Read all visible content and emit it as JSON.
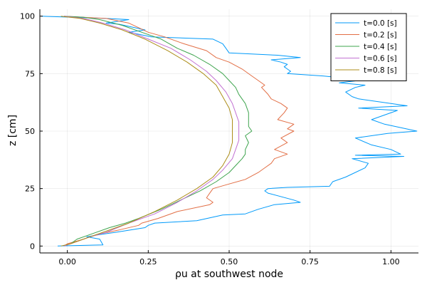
{
  "chart_data": {
    "type": "line",
    "xlabel": "ρu at southwest node",
    "ylabel": "z [cm]",
    "xlim": [
      -0.085,
      1.085
    ],
    "ylim": [
      -3,
      103
    ],
    "x_ticks": [
      0.0,
      0.25,
      0.5,
      0.75,
      1.0
    ],
    "x_tick_labels": [
      "0.00",
      "0.25",
      "0.50",
      "0.75",
      "1.00"
    ],
    "y_ticks": [
      0,
      25,
      50,
      75,
      100
    ],
    "y_tick_labels": [
      "0",
      "25",
      "50",
      "75",
      "100"
    ],
    "grid": true,
    "legend": "top-right",
    "series": [
      {
        "name": "t=0.0 [s]",
        "color": "#009AFA",
        "points": [
          [
            -0.08,
            100
          ],
          [
            0.12,
            99
          ],
          [
            0.19,
            98.5
          ],
          [
            0.12,
            97
          ],
          [
            0.16,
            96.5
          ],
          [
            0.24,
            94
          ],
          [
            0.19,
            93
          ],
          [
            0.26,
            91
          ],
          [
            0.45,
            90
          ],
          [
            0.48,
            88
          ],
          [
            0.49,
            86
          ],
          [
            0.5,
            84
          ],
          [
            0.65,
            83
          ],
          [
            0.72,
            82
          ],
          [
            0.63,
            81
          ],
          [
            0.66,
            80
          ],
          [
            0.68,
            79
          ],
          [
            0.67,
            78
          ],
          [
            0.68,
            77
          ],
          [
            0.69,
            76
          ],
          [
            0.68,
            75
          ],
          [
            0.79,
            74
          ],
          [
            0.86,
            73
          ],
          [
            0.9,
            72
          ],
          [
            0.84,
            71
          ],
          [
            0.92,
            70
          ],
          [
            0.89,
            69
          ],
          [
            0.86,
            67
          ],
          [
            0.88,
            65
          ],
          [
            0.9,
            64
          ],
          [
            1.05,
            61
          ],
          [
            0.9,
            60
          ],
          [
            1.02,
            59
          ],
          [
            0.94,
            55
          ],
          [
            0.98,
            53
          ],
          [
            1.08,
            50
          ],
          [
            0.99,
            49
          ],
          [
            0.89,
            47
          ],
          [
            0.94,
            44
          ],
          [
            1.0,
            42
          ],
          [
            1.03,
            40
          ],
          [
            0.89,
            39.5
          ],
          [
            1.04,
            39
          ],
          [
            0.88,
            38
          ],
          [
            0.93,
            36
          ],
          [
            0.92,
            34
          ],
          [
            0.86,
            30
          ],
          [
            0.82,
            28
          ],
          [
            0.81,
            26
          ],
          [
            0.68,
            25.5
          ],
          [
            0.62,
            25
          ],
          [
            0.61,
            24
          ],
          [
            0.62,
            23
          ],
          [
            0.7,
            20
          ],
          [
            0.72,
            19
          ],
          [
            0.64,
            18
          ],
          [
            0.59,
            16
          ],
          [
            0.55,
            14
          ],
          [
            0.48,
            13.5
          ],
          [
            0.4,
            11
          ],
          [
            0.27,
            10
          ],
          [
            0.25,
            9
          ],
          [
            0.24,
            8
          ],
          [
            0.15,
            6
          ],
          [
            0.1,
            5
          ],
          [
            0.06,
            4
          ],
          [
            0.1,
            3
          ],
          [
            0.11,
            0.5
          ],
          [
            -0.03,
            0
          ]
        ]
      },
      {
        "name": "t=0.2 [s]",
        "color": "#E26F46",
        "points": [
          [
            -0.01,
            100
          ],
          [
            0.05,
            99.5
          ],
          [
            0.12,
            99
          ],
          [
            0.19,
            97
          ],
          [
            0.22,
            95
          ],
          [
            0.25,
            93
          ],
          [
            0.3,
            91
          ],
          [
            0.36,
            88
          ],
          [
            0.43,
            85
          ],
          [
            0.46,
            82
          ],
          [
            0.5,
            80
          ],
          [
            0.54,
            77
          ],
          [
            0.57,
            74
          ],
          [
            0.59,
            72
          ],
          [
            0.61,
            70
          ],
          [
            0.6,
            69
          ],
          [
            0.62,
            66
          ],
          [
            0.63,
            64
          ],
          [
            0.66,
            62
          ],
          [
            0.68,
            60
          ],
          [
            0.67,
            58
          ],
          [
            0.65,
            55
          ],
          [
            0.7,
            53
          ],
          [
            0.68,
            51
          ],
          [
            0.7,
            50
          ],
          [
            0.66,
            47
          ],
          [
            0.68,
            45
          ],
          [
            0.64,
            42
          ],
          [
            0.68,
            40
          ],
          [
            0.64,
            38
          ],
          [
            0.63,
            36
          ],
          [
            0.61,
            34
          ],
          [
            0.59,
            32
          ],
          [
            0.55,
            29
          ],
          [
            0.5,
            27
          ],
          [
            0.45,
            25
          ],
          [
            0.44,
            23
          ],
          [
            0.43,
            21
          ],
          [
            0.45,
            19
          ],
          [
            0.44,
            18
          ],
          [
            0.34,
            15
          ],
          [
            0.28,
            12
          ],
          [
            0.23,
            10
          ],
          [
            0.22,
            9
          ],
          [
            0.16,
            7
          ],
          [
            0.09,
            5
          ],
          [
            0.05,
            3
          ],
          [
            0.0,
            1
          ],
          [
            -0.01,
            0
          ]
        ]
      },
      {
        "name": "t=0.4 [s]",
        "color": "#3EA44E",
        "points": [
          [
            -0.01,
            100
          ],
          [
            0.05,
            99.5
          ],
          [
            0.1,
            98.5
          ],
          [
            0.17,
            96
          ],
          [
            0.23,
            93
          ],
          [
            0.29,
            90
          ],
          [
            0.34,
            86
          ],
          [
            0.39,
            83
          ],
          [
            0.44,
            79
          ],
          [
            0.48,
            75
          ],
          [
            0.5,
            72
          ],
          [
            0.52,
            69
          ],
          [
            0.53,
            66
          ],
          [
            0.55,
            62
          ],
          [
            0.56,
            58
          ],
          [
            0.56,
            55
          ],
          [
            0.56,
            52
          ],
          [
            0.57,
            50
          ],
          [
            0.55,
            48
          ],
          [
            0.56,
            45
          ],
          [
            0.55,
            42
          ],
          [
            0.55,
            40
          ],
          [
            0.54,
            38
          ],
          [
            0.52,
            35
          ],
          [
            0.5,
            32
          ],
          [
            0.46,
            28
          ],
          [
            0.41,
            24
          ],
          [
            0.35,
            20
          ],
          [
            0.29,
            16
          ],
          [
            0.22,
            12
          ],
          [
            0.18,
            10
          ],
          [
            0.13,
            8
          ],
          [
            0.07,
            5
          ],
          [
            0.03,
            3
          ],
          [
            0.01,
            1
          ],
          [
            -0.01,
            0
          ]
        ]
      },
      {
        "name": "t=0.6 [s]",
        "color": "#C271D2",
        "points": [
          [
            -0.01,
            100
          ],
          [
            0.05,
            99
          ],
          [
            0.11,
            97
          ],
          [
            0.18,
            94
          ],
          [
            0.25,
            90
          ],
          [
            0.32,
            86
          ],
          [
            0.38,
            81
          ],
          [
            0.43,
            76
          ],
          [
            0.46,
            72
          ],
          [
            0.49,
            67
          ],
          [
            0.51,
            62
          ],
          [
            0.52,
            58
          ],
          [
            0.53,
            54
          ],
          [
            0.53,
            50
          ],
          [
            0.53,
            46
          ],
          [
            0.52,
            42
          ],
          [
            0.51,
            38
          ],
          [
            0.48,
            33
          ],
          [
            0.45,
            29
          ],
          [
            0.4,
            24
          ],
          [
            0.34,
            19
          ],
          [
            0.27,
            14
          ],
          [
            0.19,
            10
          ],
          [
            0.12,
            6
          ],
          [
            0.06,
            3.5
          ],
          [
            0.02,
            1.5
          ],
          [
            -0.01,
            0
          ]
        ]
      },
      {
        "name": "t=0.8 [s]",
        "color": "#AC8D18",
        "points": [
          [
            -0.02,
            100
          ],
          [
            0.04,
            99
          ],
          [
            0.1,
            97
          ],
          [
            0.17,
            94
          ],
          [
            0.24,
            90
          ],
          [
            0.31,
            85
          ],
          [
            0.37,
            80
          ],
          [
            0.42,
            75
          ],
          [
            0.46,
            70
          ],
          [
            0.48,
            65
          ],
          [
            0.5,
            60
          ],
          [
            0.51,
            55
          ],
          [
            0.51,
            50
          ],
          [
            0.51,
            45
          ],
          [
            0.5,
            40
          ],
          [
            0.48,
            35
          ],
          [
            0.45,
            30
          ],
          [
            0.4,
            25
          ],
          [
            0.34,
            20
          ],
          [
            0.27,
            15
          ],
          [
            0.19,
            10
          ],
          [
            0.11,
            6
          ],
          [
            0.05,
            3
          ],
          [
            0.01,
            1
          ],
          [
            -0.02,
            0
          ]
        ]
      }
    ]
  }
}
